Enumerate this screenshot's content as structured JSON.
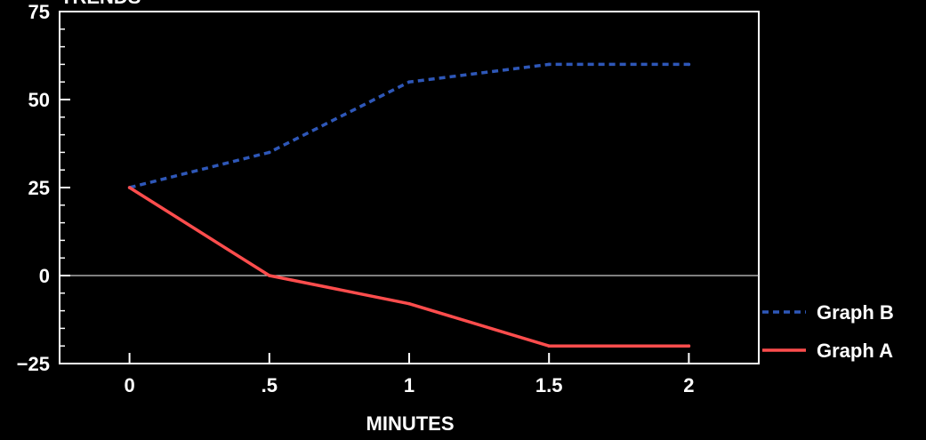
{
  "chart_data": {
    "type": "line",
    "title": "TRENDS",
    "xlabel": "MINUTES",
    "ylabel": "",
    "xlim": [
      -0.25,
      2.25
    ],
    "ylim": [
      -25,
      75
    ],
    "x_ticks": [
      0,
      0.5,
      1,
      1.5,
      2
    ],
    "x_tick_labels": [
      "0",
      ".5",
      "1",
      "1.5",
      "2"
    ],
    "y_ticks": [
      -25,
      0,
      25,
      50,
      75
    ],
    "y_tick_labels": [
      "−25",
      "0",
      "25",
      "50",
      "75"
    ],
    "grid": false,
    "zero_line": true,
    "legend_position": "outside-right-bottom",
    "background": "#000000",
    "axis_color": "#ffffff",
    "series": [
      {
        "name": "Graph B",
        "x": [
          0,
          0.5,
          1,
          1.5,
          2
        ],
        "y": [
          25,
          35,
          55,
          60,
          60
        ],
        "color": "#2e57b8",
        "dash": "dashed"
      },
      {
        "name": "Graph A",
        "x": [
          0,
          0.5,
          1,
          1.5,
          2
        ],
        "y": [
          25,
          0,
          -8,
          -20,
          -20
        ],
        "color": "#ff4d4d",
        "dash": "solid"
      }
    ]
  }
}
